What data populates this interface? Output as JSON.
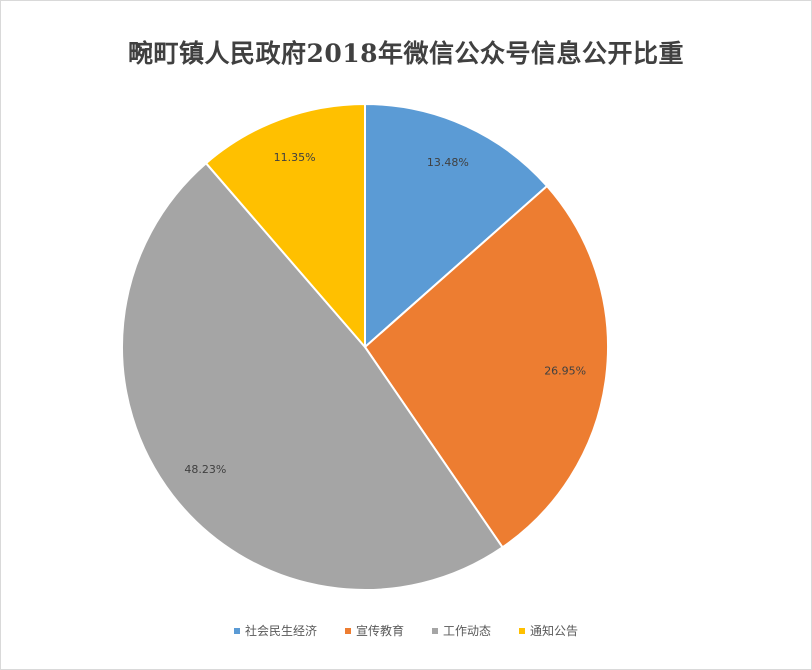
{
  "chart_data": {
    "type": "pie",
    "title": "畹町镇人民政府2018年微信公众号信息公开比重",
    "slices": [
      {
        "name": "社会民生经济",
        "value": 13.48,
        "label": "13.48%",
        "color": "#5B9BD5"
      },
      {
        "name": "宣传教育",
        "value": 26.95,
        "label": "26.95%",
        "color": "#ED7D31"
      },
      {
        "name": "工作动态",
        "value": 48.23,
        "label": "48.23%",
        "color": "#A5A5A5"
      },
      {
        "name": "通知公告",
        "value": 11.35,
        "label": "11.35%",
        "color": "#FFC000"
      }
    ],
    "legend_position": "bottom"
  }
}
